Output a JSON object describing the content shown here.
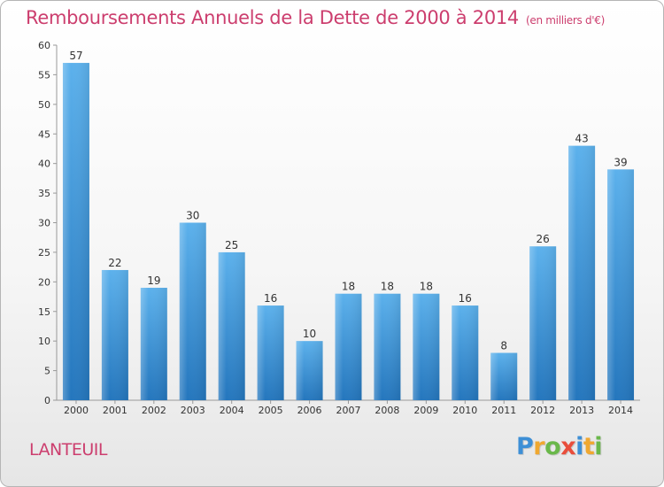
{
  "chart_data": {
    "type": "bar",
    "title": "Remboursements Annuels de la Dette de 2000 à 2014",
    "subtitle": "(en milliers d'€)",
    "categories": [
      "2000",
      "2001",
      "2002",
      "2003",
      "2004",
      "2005",
      "2006",
      "2007",
      "2008",
      "2009",
      "2010",
      "2011",
      "2012",
      "2013",
      "2014"
    ],
    "values": [
      57,
      22,
      19,
      30,
      25,
      16,
      10,
      18,
      18,
      18,
      16,
      8,
      26,
      43,
      39
    ],
    "ylim": [
      0,
      60
    ],
    "yticks": [
      0,
      5,
      10,
      15,
      20,
      25,
      30,
      35,
      40,
      45,
      50,
      55,
      60
    ],
    "xlabel": "",
    "ylabel": "",
    "grid": false,
    "bar_color": "#3a8fd6"
  },
  "commune": "LANTEUIL",
  "logo": {
    "letters": [
      "P",
      "r",
      "o",
      "x",
      "i",
      "t",
      "i"
    ],
    "colors": [
      "#3d8fd6",
      "#f0a830",
      "#6ab84a",
      "#e94e3c",
      "#3d8fd6",
      "#f0a830",
      "#6ab84a"
    ]
  }
}
